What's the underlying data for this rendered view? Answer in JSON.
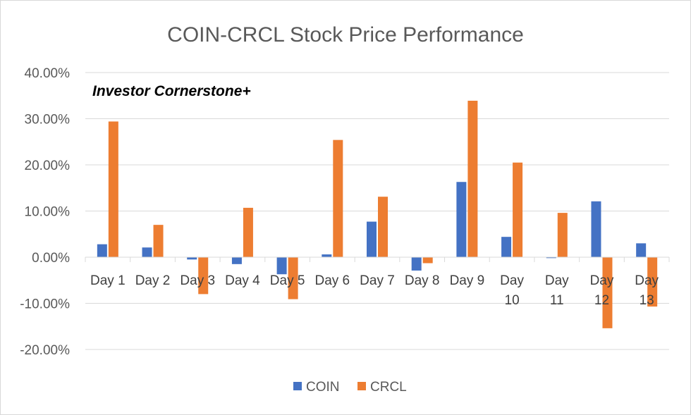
{
  "chart_data": {
    "type": "bar",
    "title": "COIN-CRCL Stock Price Performance",
    "annotation": "Investor Cornerstone+",
    "xlabel": "",
    "ylabel": "",
    "ylim": [
      -0.2,
      0.4
    ],
    "grid": true,
    "legend_position": "bottom",
    "y_ticks": [
      {
        "value": 0.4,
        "label": "40.00%"
      },
      {
        "value": 0.3,
        "label": "30.00%"
      },
      {
        "value": 0.2,
        "label": "20.00%"
      },
      {
        "value": 0.1,
        "label": "10.00%"
      },
      {
        "value": 0.0,
        "label": "0.00%"
      },
      {
        "value": -0.1,
        "label": "-10.00%"
      },
      {
        "value": -0.2,
        "label": "-20.00%"
      }
    ],
    "categories": [
      "Day 1",
      "Day 2",
      "Day 3",
      "Day 4",
      "Day 5",
      "Day 6",
      "Day 7",
      "Day 8",
      "Day 9",
      "Day 10",
      "Day 11",
      "Day 12",
      "Day 13"
    ],
    "category_lines": [
      [
        "Day 1"
      ],
      [
        "Day 2"
      ],
      [
        "Day 3"
      ],
      [
        "Day 4"
      ],
      [
        "Day 5"
      ],
      [
        "Day 6"
      ],
      [
        "Day 7"
      ],
      [
        "Day 8"
      ],
      [
        "Day 9"
      ],
      [
        "Day",
        "10"
      ],
      [
        "Day",
        "11"
      ],
      [
        "Day",
        "12"
      ],
      [
        "Day",
        "13"
      ]
    ],
    "series": [
      {
        "name": "COIN",
        "color": "#4472c4",
        "values": [
          0.028,
          0.021,
          -0.005,
          -0.015,
          -0.037,
          0.006,
          0.077,
          -0.029,
          0.163,
          0.044,
          -0.002,
          0.121,
          0.03
        ]
      },
      {
        "name": "CRCL",
        "color": "#ed7d31",
        "values": [
          0.294,
          0.07,
          -0.08,
          0.107,
          -0.091,
          0.254,
          0.131,
          -0.013,
          0.339,
          0.205,
          0.096,
          -0.154,
          -0.107
        ]
      }
    ]
  }
}
